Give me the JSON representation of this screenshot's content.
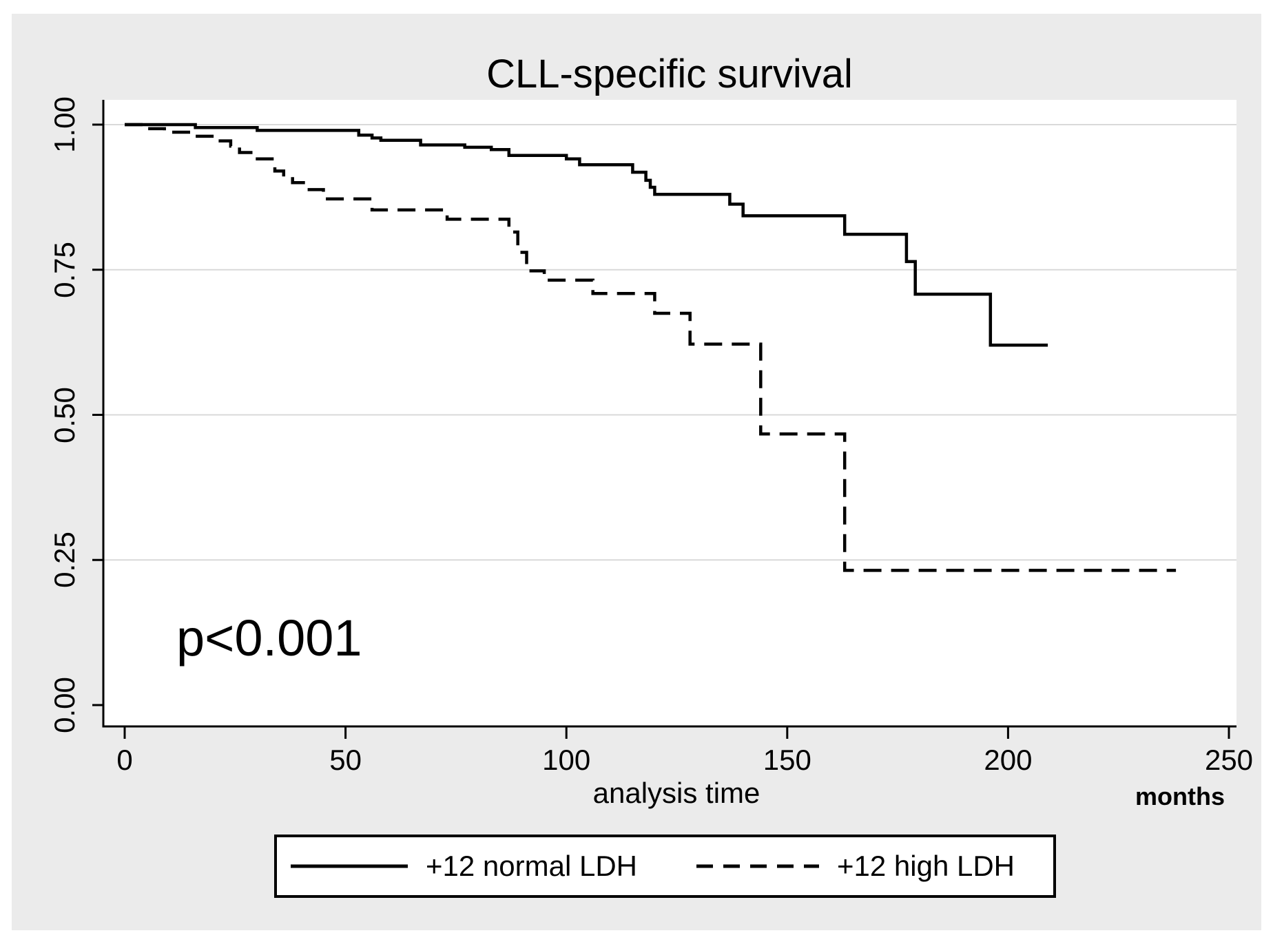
{
  "figure": {
    "title": "CLL-specific survival",
    "annotation": "p<0.001"
  },
  "x_axis": {
    "label": "analysis time",
    "unit_label": "months",
    "ticks": [
      "0",
      "50",
      "100",
      "150",
      "200",
      "250"
    ]
  },
  "y_axis": {
    "ticks": [
      "0.00",
      "0.25",
      "0.50",
      "0.75",
      "1.00"
    ]
  },
  "legend": {
    "items": [
      {
        "label": "+12 normal LDH",
        "line_style": "solid"
      },
      {
        "label": "+12 high LDH",
        "line_style": "dashed"
      }
    ]
  },
  "colors": {
    "figure_bg": "#ebebeb",
    "plot_bg": "#ffffff",
    "grid": "#d9d9d9",
    "axis": "#000000",
    "line": "#000000",
    "text": "#000000"
  },
  "chart_data": {
    "type": "line",
    "subtype": "kaplan-meier-step",
    "title": "CLL-specific survival",
    "xlabel": "analysis time",
    "x_unit_label": "months",
    "ylabel": "",
    "xlim": [
      0,
      250
    ],
    "ylim": [
      0,
      1
    ],
    "x_ticks": [
      0,
      50,
      100,
      150,
      200,
      250
    ],
    "y_ticks": [
      0,
      0.25,
      0.5,
      0.75,
      1
    ],
    "grid": "horizontal",
    "legend_position": "bottom-center",
    "annotation": {
      "text": "p<0.001",
      "x": 30,
      "y": 0.16
    },
    "series": [
      {
        "name": "+12 normal LDH",
        "line_style": "solid",
        "points": [
          [
            0,
            1.0
          ],
          [
            16,
            0.995
          ],
          [
            30,
            0.99
          ],
          [
            53,
            0.982
          ],
          [
            56,
            0.977
          ],
          [
            58,
            0.973
          ],
          [
            67,
            0.965
          ],
          [
            77,
            0.961
          ],
          [
            83,
            0.957
          ],
          [
            87,
            0.947
          ],
          [
            100,
            0.941
          ],
          [
            103,
            0.931
          ],
          [
            115,
            0.918
          ],
          [
            118,
            0.904
          ],
          [
            119,
            0.892
          ],
          [
            120,
            0.88
          ],
          [
            137,
            0.863
          ],
          [
            140,
            0.843
          ],
          [
            163,
            0.811
          ],
          [
            177,
            0.764
          ],
          [
            179,
            0.708
          ],
          [
            196,
            0.62
          ],
          [
            209,
            0.62
          ]
        ]
      },
      {
        "name": "+12 high LDH",
        "line_style": "dashed",
        "points": [
          [
            0,
            1.0
          ],
          [
            5,
            0.993
          ],
          [
            9,
            0.987
          ],
          [
            15,
            0.98
          ],
          [
            21,
            0.972
          ],
          [
            24,
            0.963
          ],
          [
            26,
            0.952
          ],
          [
            29,
            0.941
          ],
          [
            34,
            0.92
          ],
          [
            36,
            0.91
          ],
          [
            38,
            0.9
          ],
          [
            41,
            0.888
          ],
          [
            45,
            0.872
          ],
          [
            56,
            0.853
          ],
          [
            73,
            0.837
          ],
          [
            87,
            0.815
          ],
          [
            89,
            0.78
          ],
          [
            91,
            0.748
          ],
          [
            95,
            0.732
          ],
          [
            106,
            0.709
          ],
          [
            120,
            0.675
          ],
          [
            128,
            0.622
          ],
          [
            144,
            0.467
          ],
          [
            163,
            0.232
          ],
          [
            238,
            0.232
          ]
        ]
      }
    ]
  }
}
